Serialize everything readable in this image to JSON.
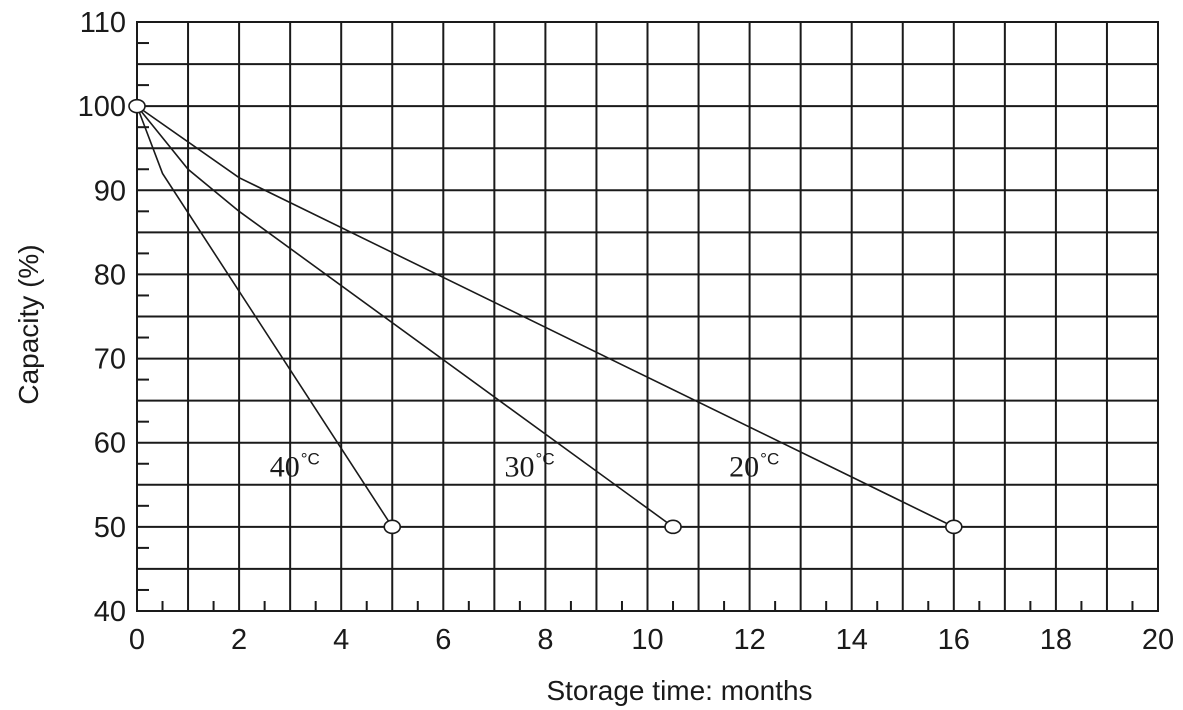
{
  "chart_data": {
    "type": "line",
    "xlabel": "Storage time: months",
    "ylabel": "Capacity (%)",
    "xlim": [
      0,
      20
    ],
    "ylim": [
      40,
      110
    ],
    "x_ticks": [
      "0",
      "2",
      "4",
      "6",
      "8",
      "10",
      "12",
      "14",
      "16",
      "18",
      "20"
    ],
    "y_ticks": [
      "40",
      "50",
      "60",
      "70",
      "80",
      "90",
      "100",
      "110"
    ],
    "grid": true,
    "series": [
      {
        "name": "40°C",
        "x": [
          0,
          0.5,
          5
        ],
        "y": [
          100,
          92,
          50
        ]
      },
      {
        "name": "30°C",
        "x": [
          0,
          1,
          2,
          10.5
        ],
        "y": [
          100,
          92.5,
          87.5,
          50
        ]
      },
      {
        "name": "20°C",
        "x": [
          0,
          2,
          16
        ],
        "y": [
          100,
          91.5,
          50
        ]
      }
    ],
    "annotations": [
      {
        "text": "40",
        "unit": "°C",
        "x": 2.6,
        "y": 56
      },
      {
        "text": "30",
        "unit": "°C",
        "x": 7.2,
        "y": 56
      },
      {
        "text": "20",
        "unit": "°C",
        "x": 11.6,
        "y": 56
      }
    ],
    "markers": [
      {
        "x": 0,
        "y": 100
      },
      {
        "x": 5,
        "y": 50
      },
      {
        "x": 10.5,
        "y": 50
      },
      {
        "x": 16,
        "y": 50
      }
    ]
  }
}
